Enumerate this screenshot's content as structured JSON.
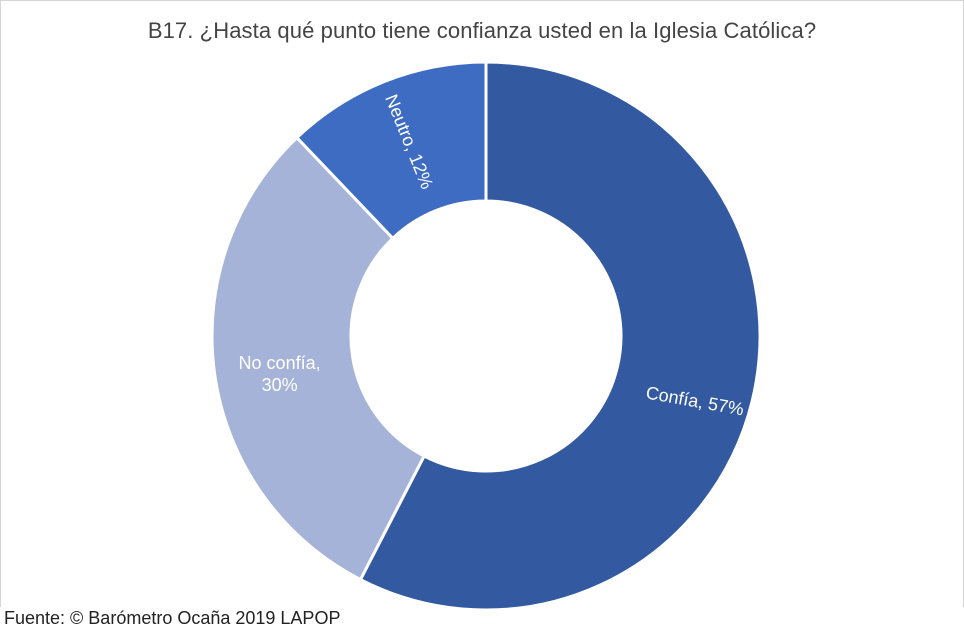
{
  "chart_data": {
    "type": "pie",
    "variant": "donut",
    "title": "B17. ¿Hasta qué punto tiene confianza usted en la Iglesia Católica?",
    "slices": [
      {
        "label": "Confía",
        "value": 57,
        "display": "Confía, 57%",
        "color": "#335aa0"
      },
      {
        "label": "No confía",
        "value": 30,
        "display_lines": [
          "No confía,",
          "30%"
        ],
        "color": "#a6b3d9"
      },
      {
        "label": "Neutro",
        "value": 12,
        "display": "Neutro, 12%",
        "color": "#3e6cc2"
      }
    ],
    "legend": "none"
  },
  "source": "Fuente: © Barómetro Ocaña 2019 LAPOP"
}
